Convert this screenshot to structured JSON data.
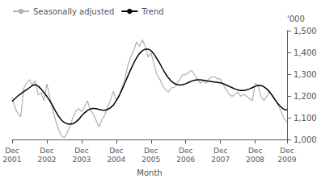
{
  "chart_data": {
    "type": "line",
    "xlabel": "Month",
    "ylabel": "'000",
    "categories": [
      "Dec\n2001",
      null,
      null,
      null,
      null,
      null,
      null,
      null,
      null,
      null,
      null,
      null,
      "Dec\n2002",
      null,
      null,
      null,
      null,
      null,
      null,
      null,
      null,
      null,
      null,
      null,
      "Dec\n2003",
      null,
      null,
      null,
      null,
      null,
      null,
      null,
      null,
      null,
      null,
      null,
      "Dec\n2004",
      null,
      null,
      null,
      null,
      null,
      null,
      null,
      null,
      null,
      null,
      null,
      "Dec\n2005",
      null,
      null,
      null,
      null,
      null,
      null,
      null,
      null,
      null,
      null,
      null,
      "Dec\n2006",
      null,
      null,
      null,
      null,
      null,
      null,
      null,
      null,
      null,
      null,
      null,
      "Dec\n2007",
      null,
      null,
      null,
      null,
      null,
      null,
      null,
      null,
      null,
      null,
      null,
      "Dec\n2008",
      null,
      null,
      null,
      null,
      null,
      null,
      null,
      null,
      null,
      null,
      "Dec\n2009"
    ],
    "series": [
      {
        "name": "Seasonally adjusted",
        "color": "#b0b0b0",
        "values": [
          1195,
          1145,
          1120,
          1105,
          1235,
          1258,
          1275,
          1250,
          1270,
          1205,
          1215,
          1178,
          1255,
          1195,
          1138,
          1088,
          1048,
          1018,
          1008,
          1030,
          1062,
          1102,
          1130,
          1142,
          1128,
          1148,
          1178,
          1138,
          1118,
          1088,
          1058,
          1090,
          1112,
          1152,
          1180,
          1222,
          1178,
          1198,
          1240,
          1280,
          1340,
          1380,
          1408,
          1448,
          1428,
          1458,
          1428,
          1378,
          1398,
          1348,
          1298,
          1278,
          1248,
          1228,
          1218,
          1238,
          1238,
          1258,
          1278,
          1298,
          1298,
          1308,
          1318,
          1298,
          1278,
          1258,
          1268,
          1258,
          1278,
          1288,
          1288,
          1278,
          1278,
          1248,
          1228,
          1208,
          1198,
          1208,
          1218,
          1198,
          1208,
          1198,
          1188,
          1178,
          1258,
          1248,
          1198,
          1178,
          1198,
          1218,
          1198,
          1178,
          1158,
          1128,
          1095,
          1078
        ]
      },
      {
        "name": "Trend",
        "color": "#000000",
        "values": [
          1175,
          1188,
          1200,
          1210,
          1220,
          1228,
          1238,
          1248,
          1252,
          1245,
          1232,
          1215,
          1198,
          1178,
          1155,
          1130,
          1108,
          1090,
          1078,
          1072,
          1070,
          1072,
          1080,
          1092,
          1108,
          1122,
          1133,
          1140,
          1143,
          1142,
          1138,
          1135,
          1134,
          1138,
          1146,
          1158,
          1178,
          1202,
          1230,
          1260,
          1292,
          1322,
          1350,
          1375,
          1395,
          1408,
          1415,
          1415,
          1408,
          1393,
          1372,
          1350,
          1325,
          1302,
          1283,
          1268,
          1258,
          1252,
          1250,
          1252,
          1256,
          1262,
          1268,
          1272,
          1274,
          1274,
          1272,
          1270,
          1268,
          1266,
          1264,
          1262,
          1260,
          1256,
          1250,
          1244,
          1238,
          1232,
          1228,
          1225,
          1225,
          1228,
          1232,
          1238,
          1244,
          1248,
          1248,
          1242,
          1232,
          1218,
          1200,
          1180,
          1162,
          1148,
          1138,
          1135
        ]
      }
    ],
    "ylim": [
      1000,
      1500
    ],
    "yticks": [
      1000,
      1100,
      1200,
      1300,
      1400,
      1500
    ],
    "grid": false,
    "legend": "upper left"
  }
}
